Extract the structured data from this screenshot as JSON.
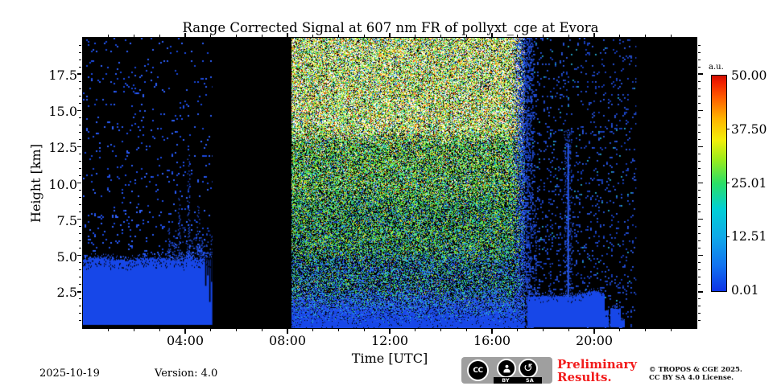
{
  "figure": {
    "title": "Range Corrected Signal at 607 nm FR of pollyxt_cge at Evora"
  },
  "axes": {
    "x_label": "Time [UTC]",
    "y_label": "Height [km]",
    "x_range_hours": [
      0,
      24
    ],
    "x_tick_labels": [
      "04:00",
      "08:00",
      "12:00",
      "16:00",
      "20:00"
    ],
    "x_tick_hours": [
      4,
      8,
      12,
      16,
      20
    ],
    "x_minor_step_hours": 1,
    "y_range_km": [
      0,
      20
    ],
    "y_tick_labels": [
      "2.5",
      "5.0",
      "7.5",
      "10.0",
      "12.5",
      "15.0",
      "17.5"
    ],
    "y_tick_km": [
      2.5,
      5,
      7.5,
      10,
      12.5,
      15,
      17.5
    ],
    "y_minor_step_km": 0.5
  },
  "colorbar": {
    "unit_label": "a.u.",
    "tick_labels": [
      "50.00",
      "37.50",
      "25.01",
      "12.51",
      "0.01"
    ],
    "tick_values": [
      50.0,
      37.5,
      25.01,
      12.51,
      0.01
    ],
    "gradient_stops": [
      "#0d33e6 0%",
      "#1173f0 12%",
      "#0fa8e8 25%",
      "#00cfd6 38%",
      "#2adf66 50%",
      "#9aec1c 61%",
      "#f2ee0a 70%",
      "#ffb400 80%",
      "#ff5a00 90%",
      "#f01e00 97%",
      "#cf0d00 100%"
    ]
  },
  "footer": {
    "date": "2025-10-19",
    "version": "Version: 4.0",
    "preliminary": "Preliminary Results.",
    "copyright_line1": "© TROPOS & CGE 2025.",
    "copyright_line2": "CC BY SA 4.0 License.",
    "badge": {
      "cc": "CC",
      "by": "BY",
      "sa": "SA",
      "sa_glyph": "↺"
    }
  },
  "chart_data": {
    "type": "heatmap",
    "title": "Range Corrected Signal at 607 nm FR of pollyxt_cge at Evora",
    "xlabel": "Time [UTC]",
    "ylabel": "Height [km]",
    "x_range_hours": [
      0,
      24
    ],
    "y_range_km": [
      0,
      20
    ],
    "value_unit": "a.u.",
    "value_range": [
      0.01,
      50.0
    ],
    "colormap": "jet",
    "description": "Lidar quicklook: night signal 00:00-05:05 with boundary layer up to ~4.7 km and sparse blue noise aloft; data gap 05:05-08:10; daylight background noise (white/yellow/green speckle, strongest above ~13 km) 08:10-17:20; evening 17:25-21:35 with boundary layer up to ~2.2 km, a strong vertical echo near 19:00 reaching ~12.7 km; no data after ~21:40.",
    "render": {
      "seed": 1337,
      "blue_solid": "#1747e8",
      "speckle_blues": [
        "#1e4ce6",
        "#2a5cf4",
        "#1846d8",
        "#2f62ff"
      ],
      "cyan_accent": "#27b4dc",
      "night": {
        "t": [
          0,
          5.06
        ],
        "speckle_density": 0.042,
        "bl_top_km": 4.7,
        "bottom_black_km": 0.22,
        "bl_bump": {
          "t": 4.12,
          "km": 0.55
        },
        "halo": {
          "t": [
            3.3,
            5.06
          ],
          "km": [
            4.7,
            7.0
          ]
        },
        "spikes": [
          {
            "t": 3.37,
            "top_km": 7.0
          },
          {
            "t": 3.75,
            "top_km": 9.0
          },
          {
            "t": 4.12,
            "top_km": 12.0
          },
          {
            "t": 4.5,
            "top_km": 8.5
          },
          {
            "t": 4.65,
            "top_km": 6.5
          }
        ],
        "gashes": [
          [
            4.78,
            35
          ],
          [
            4.86,
            22
          ],
          [
            4.94,
            55
          ],
          [
            5.01,
            30
          ]
        ]
      },
      "gap1": {
        "t": [
          5.06,
          8.16
        ]
      },
      "day": {
        "t": [
          8.16,
          17.3
        ],
        "blue_fade_start_t": 16.7,
        "bands": [
          {
            "km": [
              13.2,
              20
            ],
            "weights": [
              [
                "#ffffff",
                26
              ],
              [
                "#f2f23c",
                16
              ],
              [
                "#ff9818",
                8
              ],
              [
                "#ee3c14",
                5
              ],
              [
                "#43dd49",
                13
              ],
              [
                "#9ae832",
                6
              ],
              [
                "#2ac8d8",
                8
              ],
              [
                "#2a58ee",
                4
              ],
              [
                "#000000",
                14
              ]
            ]
          },
          {
            "km": [
              9,
              13.2
            ],
            "weights": [
              [
                "#ffffff",
                5
              ],
              [
                "#f2f23c",
                10
              ],
              [
                "#ff9818",
                3
              ],
              [
                "#ee3c14",
                2
              ],
              [
                "#43dd49",
                22
              ],
              [
                "#9ae832",
                8
              ],
              [
                "#2ac8d8",
                11
              ],
              [
                "#2a58ee",
                7
              ],
              [
                "#000000",
                32
              ]
            ]
          },
          {
            "km": [
              5,
              9
            ],
            "weights": [
              [
                "#f2f23c",
                6
              ],
              [
                "#ff9818",
                2
              ],
              [
                "#ee3c14",
                1
              ],
              [
                "#43dd49",
                22
              ],
              [
                "#9ae832",
                6
              ],
              [
                "#2ac8d8",
                12
              ],
              [
                "#2a58ee",
                13
              ],
              [
                "#000000",
                38
              ]
            ]
          },
          {
            "km": [
              2.2,
              5
            ],
            "weights": [
              [
                "#43dd49",
                12
              ],
              [
                "#9ae832",
                1
              ],
              [
                "#2ac8d8",
                13
              ],
              [
                "#2a58ee",
                28
              ],
              [
                "#f2f23c",
                2
              ],
              [
                "#ee3c14",
                1
              ],
              [
                "#000000",
                43
              ]
            ]
          },
          {
            "km": [
              0.95,
              2.2
            ],
            "weights": [
              [
                "#2a58ee",
                48
              ],
              [
                "#1747e8",
                18
              ],
              [
                "#2ac8d8",
                9
              ],
              [
                "#43dd49",
                3
              ],
              [
                "#000000",
                22
              ]
            ]
          },
          {
            "km": [
              0,
              0.95
            ],
            "weights": [
              [
                "#1747e8",
                96
              ],
              [
                "#000000",
                4
              ]
            ]
          }
        ]
      },
      "transition": {
        "t": [
          17.28,
          17.62
        ]
      },
      "evening": {
        "t": [
          17.4,
          21.62
        ],
        "speckle_density": 0.115,
        "bl": {
          "top_km": 2.12,
          "hump_t": 19.95,
          "hump_km": 0.35,
          "end_t": 20.38,
          "step2_top_km": 1.15,
          "step2_end_t": 20.55,
          "gap_end_t": 20.62,
          "block3_top_km": 1.28,
          "block3_end_t": 21.02,
          "tail_top_km": 0.5,
          "tail_end_t": 21.18
        },
        "spikes": [
          {
            "t": 18.95,
            "top_km": 12.7,
            "solid": true
          },
          {
            "t": 19.1,
            "top_km": 7.2,
            "solid": false
          },
          {
            "t": 17.68,
            "top_km": 8.8,
            "solid": false
          },
          {
            "t": 18.25,
            "top_km": 4.8,
            "solid": false
          }
        ]
      },
      "gap2": {
        "t": [
          21.65,
          24
        ]
      }
    }
  }
}
